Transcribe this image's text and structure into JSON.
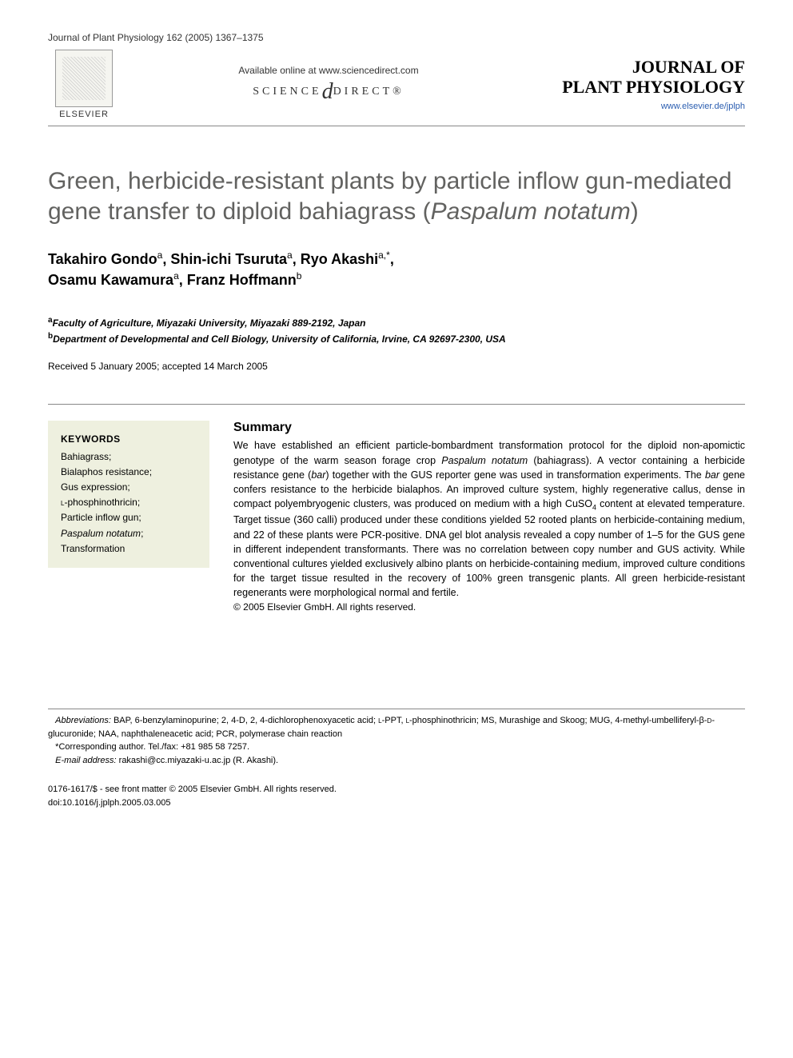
{
  "header": {
    "journal_ref": "Journal of Plant Physiology 162 (2005) 1367–1375",
    "elsevier": "ELSEVIER",
    "available_online": "Available online at www.sciencedirect.com",
    "science": "SCIENCE",
    "direct": "DIRECT®",
    "journal_title_1": "JOURNAL OF",
    "journal_title_2": "PLANT PHYSIOLOGY",
    "journal_url": "www.elsevier.de/jplph"
  },
  "article": {
    "title_1": "Green, herbicide-resistant plants by particle inflow gun-mediated gene transfer to diploid bahiagrass (",
    "title_italic": "Paspalum notatum",
    "title_2": ")"
  },
  "authors": {
    "a1_name": "Takahiro Gondo",
    "a1_sup": "a",
    "a2_name": "Shin-ichi Tsuruta",
    "a2_sup": "a",
    "a3_name": "Ryo Akashi",
    "a3_sup": "a,*",
    "a4_name": "Osamu Kawamura",
    "a4_sup": "a",
    "a5_name": "Franz Hoffmann",
    "a5_sup": "b"
  },
  "affiliations": {
    "a_sup": "a",
    "a_text": "Faculty of Agriculture, Miyazaki University, Miyazaki 889-2192, Japan",
    "b_sup": "b",
    "b_text": "Department of Developmental and Cell Biology, University of California, Irvine, CA 92697-2300, USA"
  },
  "dates": "Received 5 January 2005; accepted 14 March 2005",
  "keywords": {
    "heading": "KEYWORDS",
    "k1": "Bahiagrass;",
    "k2": "Bialaphos resistance;",
    "k3": "Gus expression;",
    "k4_sc": "l",
    "k4_rest": "-phosphinothricin;",
    "k5": "Particle inflow gun;",
    "k6_italic": "Paspalum notatum",
    "k6_semi": ";",
    "k7": "Transformation"
  },
  "summary": {
    "heading": "Summary",
    "p1a": "We have established an efficient particle-bombardment transformation protocol for the diploid non-apomictic genotype of the warm season forage crop ",
    "p1_italic1": "Paspalum notatum",
    "p1b": " (bahiagrass). A vector containing a herbicide resistance gene (",
    "p1_italic2": "bar",
    "p1c": ") together with the GUS reporter gene was used in transformation experiments. The ",
    "p1_italic3": "bar",
    "p1d": " gene confers resistance to the herbicide bialaphos. An improved culture system, highly regenerative callus, dense in compact polyembryogenic clusters, was produced on medium with a high CuSO",
    "p1_sub": "4",
    "p1e": " content at elevated temperature. Target tissue (360 calli) produced under these conditions yielded 52 rooted plants on herbicide-containing medium, and 22 of these plants were PCR-positive. DNA gel blot analysis revealed a copy number of 1–5 for the GUS gene in different independent transformants. There was no correlation between copy number and GUS activity. While conventional cultures yielded exclusively albino plants on herbicide-containing medium, improved culture conditions for the target tissue resulted in the recovery of 100% green transgenic plants. All green herbicide-resistant regenerants were morphological normal and fertile.",
    "copyright": "© 2005 Elsevier GmbH. All rights reserved."
  },
  "footer": {
    "abbrev_label": "Abbreviations:",
    "abbrev_text_a": " BAP, 6-benzylaminopurine; 2, 4-D, 2, 4-dichlorophenoxyacetic acid; ",
    "abbrev_sc": "l",
    "abbrev_text_b": "-PPT, ",
    "abbrev_sc2": "l",
    "abbrev_text_c": "-phosphinothricin; MS, Murashige and Skoog; MUG, 4-methyl-umbelliferyl-β-",
    "abbrev_sc3": "d",
    "abbrev_text_d": "-glucuronide; NAA, naphthaleneacetic acid; PCR, polymerase chain reaction",
    "corr_star": "*",
    "corr_text": "Corresponding author. Tel./fax: +81 985 58 7257.",
    "email_label": "E-mail address:",
    "email_val": " rakashi@cc.miyazaki-u.ac.jp (R. Akashi).",
    "issn": "0176-1617/$ - see front matter © 2005 Elsevier GmbH. All rights reserved.",
    "doi": "doi:10.1016/j.jplph.2005.03.005"
  }
}
